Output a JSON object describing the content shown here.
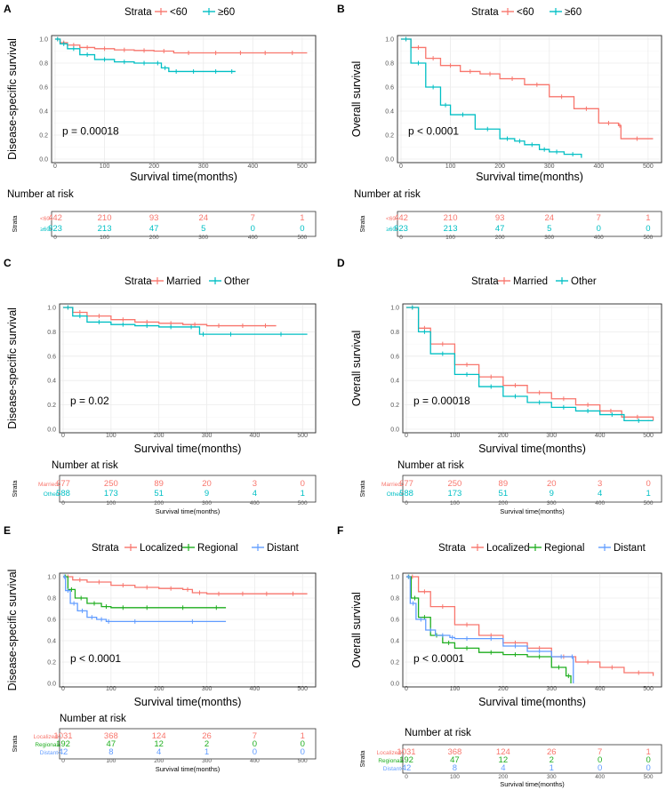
{
  "colors": {
    "red": "#F8766D",
    "teal": "#00BFC4",
    "green": "#1FAE1F",
    "blue": "#619CFF",
    "grid": "#EBEBEB",
    "axis": "#333333",
    "tick": "#555555"
  },
  "chart_data": [
    {
      "id": "A",
      "type": "line",
      "panel_label": "A",
      "legend_title": "Strata",
      "ylabel": "Disease-specific survival",
      "xlabel": "Survival time(months)",
      "xlim": [
        0,
        520
      ],
      "ylim": [
        0,
        1
      ],
      "xticks": [
        0,
        100,
        200,
        300,
        400,
        500
      ],
      "yticks": [
        0.0,
        0.2,
        0.4,
        0.6,
        0.8,
        1.0
      ],
      "ytick_labels": [
        "0.0",
        "0.2",
        "0.4",
        "0.6",
        "0.8",
        "1.0"
      ],
      "pvalue": "p = 0.00018",
      "series": [
        {
          "name": "<60",
          "color": "red",
          "x": [
            0,
            10,
            25,
            50,
            80,
            120,
            160,
            200,
            240,
            300,
            350,
            400,
            450,
            510
          ],
          "y": [
            1,
            0.97,
            0.95,
            0.93,
            0.92,
            0.91,
            0.905,
            0.9,
            0.885,
            0.885,
            0.885,
            0.885,
            0.885,
            0.885
          ]
        },
        {
          "name": "≥60",
          "color": "teal",
          "x": [
            0,
            10,
            25,
            50,
            80,
            120,
            160,
            200,
            215,
            230,
            260,
            300,
            350,
            365
          ],
          "y": [
            1,
            0.96,
            0.92,
            0.87,
            0.83,
            0.81,
            0.8,
            0.8,
            0.76,
            0.73,
            0.73,
            0.73,
            0.73,
            0.73
          ]
        }
      ],
      "risk": {
        "title": "Number at risk",
        "label": "Strata",
        "rows": [
          {
            "name": "<60",
            "color": "red",
            "values": [
              "442",
              "210",
              "93",
              "24",
              "7",
              "1"
            ]
          },
          {
            "name": "≥60",
            "color": "teal",
            "values": [
              "823",
              "213",
              "47",
              "5",
              "0",
              "0"
            ]
          }
        ],
        "xlabel": ""
      }
    },
    {
      "id": "B",
      "type": "line",
      "panel_label": "B",
      "legend_title": "Strata",
      "ylabel": "Overall survival",
      "xlabel": "Survival time(months)",
      "xlim": [
        0,
        520
      ],
      "ylim": [
        0,
        1
      ],
      "xticks": [
        0,
        100,
        200,
        300,
        400,
        500
      ],
      "yticks": [
        0.0,
        0.2,
        0.4,
        0.6,
        0.8,
        1.0
      ],
      "ytick_labels": [
        "0.0",
        "0.2",
        "0.4",
        "0.6",
        "0.8",
        "1.0"
      ],
      "pvalue": "p < 0.0001",
      "series": [
        {
          "name": "<60",
          "color": "red",
          "x": [
            0,
            20,
            50,
            80,
            120,
            160,
            200,
            250,
            300,
            350,
            400,
            440,
            445,
            510
          ],
          "y": [
            1,
            0.93,
            0.84,
            0.78,
            0.73,
            0.71,
            0.67,
            0.62,
            0.52,
            0.42,
            0.3,
            0.28,
            0.17,
            0.17
          ]
        },
        {
          "name": "≥60",
          "color": "teal",
          "x": [
            0,
            20,
            50,
            80,
            100,
            150,
            200,
            230,
            250,
            280,
            300,
            330,
            365
          ],
          "y": [
            1,
            0.8,
            0.6,
            0.45,
            0.37,
            0.25,
            0.17,
            0.15,
            0.12,
            0.08,
            0.06,
            0.04,
            0.01
          ]
        }
      ],
      "risk": {
        "title": "Number at risk",
        "label": "Strata",
        "rows": [
          {
            "name": "<60",
            "color": "red",
            "values": [
              "442",
              "210",
              "93",
              "24",
              "7",
              "1"
            ]
          },
          {
            "name": "≥60",
            "color": "teal",
            "values": [
              "823",
              "213",
              "47",
              "5",
              "0",
              "0"
            ]
          }
        ],
        "xlabel": ""
      }
    },
    {
      "id": "C",
      "type": "line",
      "panel_label": "C",
      "legend_title": "Strata",
      "ylabel": "Disease-specific survival",
      "xlabel": "Survival time(months)",
      "xlim": [
        0,
        520
      ],
      "ylim": [
        0,
        1
      ],
      "xticks": [
        0,
        100,
        200,
        300,
        400,
        500
      ],
      "yticks": [
        0.0,
        0.2,
        0.4,
        0.6,
        0.8,
        1.0
      ],
      "ytick_labels": [
        "0.0",
        "0.2",
        "0.4",
        "0.6",
        "0.8",
        "1.0"
      ],
      "pvalue": "p = 0.02",
      "series": [
        {
          "name": "Married",
          "color": "red",
          "x": [
            0,
            20,
            50,
            100,
            150,
            200,
            250,
            300,
            350,
            400,
            445
          ],
          "y": [
            1,
            0.96,
            0.93,
            0.9,
            0.88,
            0.87,
            0.86,
            0.85,
            0.85,
            0.85,
            0.85
          ]
        },
        {
          "name": "Other",
          "color": "teal",
          "x": [
            0,
            20,
            50,
            100,
            150,
            200,
            250,
            285,
            300,
            400,
            510
          ],
          "y": [
            1,
            0.93,
            0.88,
            0.86,
            0.85,
            0.84,
            0.84,
            0.78,
            0.78,
            0.78,
            0.78
          ]
        }
      ],
      "risk": {
        "title": "Number at risk",
        "label": "Strata",
        "rows": [
          {
            "name": "Married",
            "color": "red",
            "values": [
              "677",
              "250",
              "89",
              "20",
              "3",
              "0"
            ]
          },
          {
            "name": "Other",
            "color": "teal",
            "values": [
              "588",
              "173",
              "51",
              "9",
              "4",
              "1"
            ]
          }
        ],
        "xlabel": "Survival time(months)"
      }
    },
    {
      "id": "D",
      "type": "line",
      "panel_label": "D",
      "legend_title": "Strata",
      "ylabel": "Overall survival",
      "xlabel": "Survival time(months)",
      "xlim": [
        0,
        520
      ],
      "ylim": [
        0,
        1
      ],
      "xticks": [
        0,
        100,
        200,
        300,
        400,
        500
      ],
      "yticks": [
        0.0,
        0.2,
        0.4,
        0.6,
        0.8,
        1.0
      ],
      "ytick_labels": [
        "0.0",
        "0.2",
        "0.4",
        "0.6",
        "0.8",
        "1.0"
      ],
      "pvalue": "p = 0.00018",
      "series": [
        {
          "name": "Married",
          "color": "red",
          "x": [
            0,
            25,
            50,
            100,
            150,
            200,
            250,
            300,
            350,
            400,
            445,
            510
          ],
          "y": [
            1,
            0.83,
            0.7,
            0.53,
            0.43,
            0.36,
            0.3,
            0.25,
            0.2,
            0.15,
            0.1,
            0.07
          ]
        },
        {
          "name": "Other",
          "color": "teal",
          "x": [
            0,
            25,
            50,
            100,
            150,
            200,
            250,
            300,
            350,
            400,
            450,
            510
          ],
          "y": [
            1,
            0.8,
            0.62,
            0.45,
            0.35,
            0.27,
            0.22,
            0.18,
            0.15,
            0.12,
            0.07,
            0.07
          ]
        }
      ],
      "risk": {
        "title": "Number at risk",
        "label": "Strata",
        "rows": [
          {
            "name": "Married",
            "color": "red",
            "values": [
              "677",
              "250",
              "89",
              "20",
              "3",
              "0"
            ]
          },
          {
            "name": "Other",
            "color": "teal",
            "values": [
              "588",
              "173",
              "51",
              "9",
              "4",
              "1"
            ]
          }
        ],
        "xlabel": "Survival time(months)"
      }
    },
    {
      "id": "E",
      "type": "line",
      "panel_label": "E",
      "legend_title": "Strata",
      "ylabel": "Disease-specific survival",
      "xlabel": "Survival time(months)",
      "xlim": [
        0,
        520
      ],
      "ylim": [
        0,
        1
      ],
      "xticks": [
        0,
        100,
        200,
        300,
        400,
        500
      ],
      "yticks": [
        0.0,
        0.2,
        0.4,
        0.6,
        0.8,
        1.0
      ],
      "ytick_labels": [
        "0.0",
        "0.2",
        "0.4",
        "0.6",
        "0.8",
        "1.0"
      ],
      "pvalue": "p < 0.0001",
      "series": [
        {
          "name": "Localized",
          "color": "red",
          "x": [
            0,
            20,
            50,
            100,
            150,
            200,
            250,
            270,
            300,
            350,
            400,
            450,
            510
          ],
          "y": [
            1,
            0.97,
            0.95,
            0.92,
            0.9,
            0.89,
            0.88,
            0.85,
            0.84,
            0.84,
            0.84,
            0.84,
            0.84
          ]
        },
        {
          "name": "Regional",
          "color": "green",
          "x": [
            0,
            10,
            25,
            50,
            80,
            100,
            150,
            200,
            300,
            340
          ],
          "y": [
            1,
            0.88,
            0.8,
            0.75,
            0.72,
            0.71,
            0.71,
            0.71,
            0.71,
            0.71
          ]
        },
        {
          "name": "Distant",
          "color": "blue",
          "x": [
            0,
            5,
            15,
            30,
            50,
            70,
            90,
            100,
            200,
            340
          ],
          "y": [
            1,
            0.87,
            0.75,
            0.68,
            0.62,
            0.6,
            0.58,
            0.58,
            0.58,
            0.58
          ]
        }
      ],
      "risk": {
        "title": "Number at risk",
        "label": "Strata",
        "rows": [
          {
            "name": "Localized",
            "color": "red",
            "values": [
              "1031",
              "368",
              "124",
              "26",
              "7",
              "1"
            ]
          },
          {
            "name": "Regional",
            "color": "green",
            "values": [
              "192",
              "47",
              "12",
              "2",
              "0",
              "0"
            ]
          },
          {
            "name": "Distant",
            "color": "blue",
            "values": [
              "42",
              "8",
              "4",
              "1",
              "0",
              "0"
            ]
          }
        ],
        "xlabel": "Survival time(months)"
      }
    },
    {
      "id": "F",
      "type": "line",
      "panel_label": "F",
      "legend_title": "Strata",
      "ylabel": "Overall survival",
      "xlabel": "Survival time(months)",
      "xlim": [
        0,
        520
      ],
      "ylim": [
        0,
        1
      ],
      "xticks": [
        0,
        100,
        200,
        300,
        400,
        500
      ],
      "yticks": [
        0.0,
        0.2,
        0.4,
        0.6,
        0.8,
        1.0
      ],
      "ytick_labels": [
        "0.0",
        "0.2",
        "0.4",
        "0.6",
        "0.8",
        "1.0"
      ],
      "pvalue": "p < 0.0001",
      "series": [
        {
          "name": "Localized",
          "color": "red",
          "x": [
            0,
            25,
            50,
            100,
            150,
            200,
            250,
            300,
            350,
            400,
            450,
            510
          ],
          "y": [
            1,
            0.86,
            0.72,
            0.55,
            0.45,
            0.38,
            0.33,
            0.25,
            0.2,
            0.15,
            0.1,
            0.07
          ]
        },
        {
          "name": "Regional",
          "color": "green",
          "x": [
            0,
            10,
            25,
            50,
            75,
            100,
            150,
            200,
            250,
            300,
            330,
            340
          ],
          "y": [
            1,
            0.8,
            0.62,
            0.45,
            0.38,
            0.33,
            0.29,
            0.27,
            0.25,
            0.15,
            0.07,
            0.0
          ]
        },
        {
          "name": "Distant",
          "color": "blue",
          "x": [
            0,
            8,
            20,
            40,
            60,
            90,
            100,
            150,
            200,
            250,
            300,
            340,
            345
          ],
          "y": [
            1,
            0.75,
            0.6,
            0.5,
            0.45,
            0.43,
            0.42,
            0.42,
            0.35,
            0.3,
            0.25,
            0.25,
            0.0
          ]
        }
      ],
      "risk": {
        "title": "Number at risk",
        "label": "Strata",
        "rows": [
          {
            "name": "Localized",
            "color": "red",
            "values": [
              "1031",
              "368",
              "124",
              "26",
              "7",
              "1"
            ]
          },
          {
            "name": "Regional",
            "color": "green",
            "values": [
              "192",
              "47",
              "12",
              "2",
              "0",
              "0"
            ]
          },
          {
            "name": "Distant",
            "color": "blue",
            "values": [
              "42",
              "8",
              "4",
              "1",
              "0",
              "0"
            ]
          }
        ],
        "xlabel": "Survival time(months)"
      }
    }
  ]
}
